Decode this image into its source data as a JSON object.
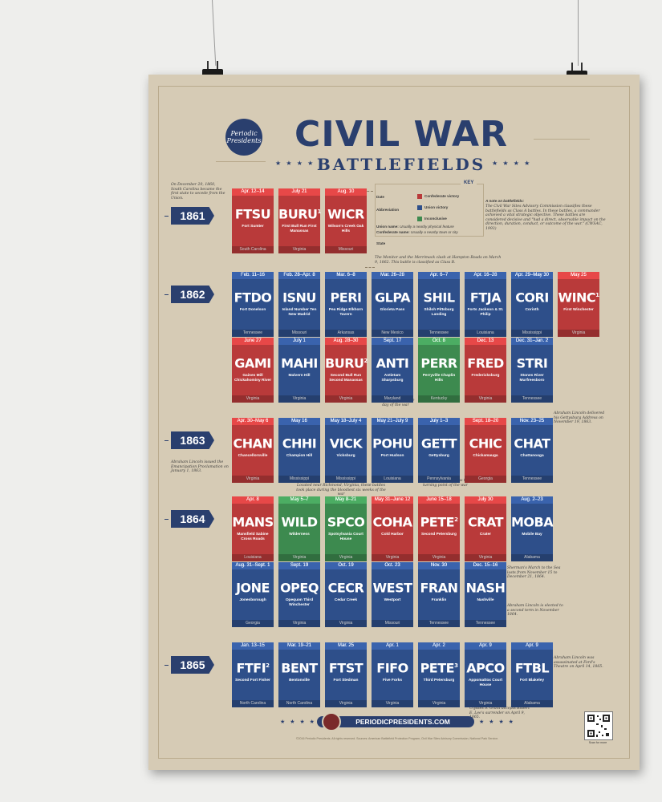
{
  "poster": {
    "logo_line1": "Periodic",
    "logo_line2": "Presidents",
    "title": "CIVIL WAR",
    "subtitle": "BATTLEFIELDS",
    "stars": "★ ★ ★ ★",
    "footer_url": "PERIODICPRESIDENTS.COM",
    "copyright": "©2016 Periodic Presidents. All rights reserved. Sources: American Battlefield Protection Program, Civil War Sites Advisory Commission, National Park Service.",
    "qr_label": "Scan for more"
  },
  "colors": {
    "confederate": "#b93a3a",
    "union": "#2e4f8a",
    "inconclusive": "#3d8a4f",
    "navy": "#2a3f6e",
    "paper": "#d6cbb5"
  },
  "key": {
    "title": "KEY",
    "date_label": "Date",
    "abbr_label": "Abbreviation",
    "union_name_label": "Union name:",
    "union_name_desc": "Usually a nearby physical feature",
    "confed_name_label": "Confederate name:",
    "confed_name_desc": "Usually a nearby town or city",
    "state_label": "State",
    "legend_confederate": "Confederate victory",
    "legend_union": "Union victory",
    "legend_inconclusive": "Inconclusive",
    "note_title": "A note on battlefields:",
    "note_text": "The Civil War Sites Advisory Commission classifies these battlefields as Class A battles. In these battles, a commander achieved a vital strategic objective. These battles are considered decisive and \"had a direct, observable impact on the direction, duration, conduct, or outcome of the war.\" (CWSAC, 1993)"
  },
  "notes": {
    "secession": "On December 20, 1860, South Carolina became the first state to secede from the Union.",
    "monitor": "The Monitor and the Merrimack clash at Hampton Roads on March 9, 1862. This battle is classified as Class B.",
    "bloodiest": "The bloodiest single day of the war",
    "gettysburg_address": "Abraham Lincoln delivered his Gettysburg Address on November 19, 1863.",
    "emancipation": "Abraham Lincoln issued the Emancipation Proclamation on January 1, 1863.",
    "turning_point": "Generally regarded as the turning point of the war",
    "overland": "Located near Richmond, Virginia, these battles took place during the bloodiest six weeks of the war",
    "sherman": "Sherman's March to the Sea lasts from November 15 to December 21, 1864.",
    "reelected": "Abraham Lincoln is elected to a second term in November 1864.",
    "assassinated": "Abraham Lincoln was assassinated at Ford's Theatre on April 14, 1865.",
    "surrender": "Ulysses S. Grant accepts Robert E. Lee's surrender on April 9, 1865."
  },
  "years": [
    {
      "year": "1861",
      "rows": [
        [
          {
            "date": "Apr. 12–14",
            "abbr": "FTSU",
            "sup": "",
            "name": "Fort Sumter",
            "state": "South Carolina",
            "result": "confederate"
          },
          {
            "date": "July 21",
            "abbr": "BURU",
            "sup": "1",
            "name": "First Bull Run First Manassas",
            "state": "Virginia",
            "result": "confederate"
          },
          {
            "date": "Aug. 10",
            "abbr": "WICR",
            "sup": "",
            "name": "Wilson's Creek Oak Hills",
            "state": "Missouri",
            "result": "confederate"
          }
        ]
      ]
    },
    {
      "year": "1862",
      "rows": [
        [
          {
            "date": "Feb. 11–16",
            "abbr": "FTDO",
            "sup": "",
            "name": "Fort Donelson",
            "state": "Tennessee",
            "result": "union"
          },
          {
            "date": "Feb. 28–Apr. 8",
            "abbr": "ISNU",
            "sup": "",
            "name": "Island Number Ten New Madrid",
            "state": "Missouri",
            "result": "union"
          },
          {
            "date": "Mar. 6–8",
            "abbr": "PERI",
            "sup": "",
            "name": "Pea Ridge Elkhorn Tavern",
            "state": "Arkansas",
            "result": "union"
          },
          {
            "date": "Mar. 26–28",
            "abbr": "GLPA",
            "sup": "",
            "name": "Glorieta Pass",
            "state": "New Mexico",
            "result": "union"
          },
          {
            "date": "Apr. 6–7",
            "abbr": "SHIL",
            "sup": "",
            "name": "Shiloh Pittsburg Landing",
            "state": "Tennessee",
            "result": "union"
          },
          {
            "date": "Apr. 16–28",
            "abbr": "FTJA",
            "sup": "",
            "name": "Forts Jackson & St. Philip",
            "state": "Louisiana",
            "result": "union"
          },
          {
            "date": "Apr. 29–May 30",
            "abbr": "CORI",
            "sup": "",
            "name": "Corinth",
            "state": "Mississippi",
            "result": "union"
          },
          {
            "date": "May 25",
            "abbr": "WINC",
            "sup": "1",
            "name": "First Winchester",
            "state": "Virginia",
            "result": "confederate"
          }
        ],
        [
          {
            "date": "June 27",
            "abbr": "GAMI",
            "sup": "",
            "name": "Gaines Mill Chickahominy River",
            "state": "Virginia",
            "result": "confederate"
          },
          {
            "date": "July 1",
            "abbr": "MAHI",
            "sup": "",
            "name": "Malvern Hill",
            "state": "Virginia",
            "result": "union"
          },
          {
            "date": "Aug. 28–30",
            "abbr": "BURU",
            "sup": "2",
            "name": "Second Bull Run Second Manassas",
            "state": "Virginia",
            "result": "confederate"
          },
          {
            "date": "Sept. 17",
            "abbr": "ANTI",
            "sup": "",
            "name": "Antietam Sharpsburg",
            "state": "Maryland",
            "result": "union"
          },
          {
            "date": "Oct. 8",
            "abbr": "PERR",
            "sup": "",
            "name": "Perryville Chaplin Hills",
            "state": "Kentucky",
            "result": "inconclusive"
          },
          {
            "date": "Dec. 13",
            "abbr": "FRED",
            "sup": "",
            "name": "Fredericksburg",
            "state": "Virginia",
            "result": "confederate"
          },
          {
            "date": "Dec. 31–Jan. 2",
            "abbr": "STRI",
            "sup": "",
            "name": "Stones River Murfreesboro",
            "state": "Tennessee",
            "result": "union"
          }
        ]
      ]
    },
    {
      "year": "1863",
      "rows": [
        [
          {
            "date": "Apr. 30–May 6",
            "abbr": "CHAN",
            "sup": "",
            "name": "Chancellorsville",
            "state": "Virginia",
            "result": "confederate"
          },
          {
            "date": "May 16",
            "abbr": "CHHI",
            "sup": "",
            "name": "Champion Hill",
            "state": "Mississippi",
            "result": "union"
          },
          {
            "date": "May 18–July 4",
            "abbr": "VICK",
            "sup": "",
            "name": "Vicksburg",
            "state": "Mississippi",
            "result": "union"
          },
          {
            "date": "May 21–July 9",
            "abbr": "POHU",
            "sup": "",
            "name": "Port Hudson",
            "state": "Louisiana",
            "result": "union"
          },
          {
            "date": "July 1–3",
            "abbr": "GETT",
            "sup": "",
            "name": "Gettysburg",
            "state": "Pennsylvania",
            "result": "union"
          },
          {
            "date": "Sept. 18–20",
            "abbr": "CHIC",
            "sup": "",
            "name": "Chickamauga",
            "state": "Georgia",
            "result": "confederate"
          },
          {
            "date": "Nov. 23–25",
            "abbr": "CHAT",
            "sup": "",
            "name": "Chattanooga",
            "state": "Tennessee",
            "result": "union"
          }
        ]
      ]
    },
    {
      "year": "1864",
      "rows": [
        [
          {
            "date": "Apr. 8",
            "abbr": "MANS",
            "sup": "",
            "name": "Mansfield Sabine Cross Roads",
            "state": "Louisiana",
            "result": "confederate"
          },
          {
            "date": "May 5–7",
            "abbr": "WILD",
            "sup": "",
            "name": "Wilderness",
            "state": "Virginia",
            "result": "inconclusive"
          },
          {
            "date": "May 8–21",
            "abbr": "SPCO",
            "sup": "",
            "name": "Spotsylvania Court House",
            "state": "Virginia",
            "result": "inconclusive"
          },
          {
            "date": "May 31–June 12",
            "abbr": "COHA",
            "sup": "",
            "name": "Cold Harbor",
            "state": "Virginia",
            "result": "confederate"
          },
          {
            "date": "June 15–18",
            "abbr": "PETE",
            "sup": "2",
            "name": "Second Petersburg",
            "state": "Virginia",
            "result": "confederate"
          },
          {
            "date": "July 30",
            "abbr": "CRAT",
            "sup": "",
            "name": "Crater",
            "state": "Virginia",
            "result": "confederate"
          },
          {
            "date": "Aug. 2–23",
            "abbr": "MOBA",
            "sup": "",
            "name": "Mobile Bay",
            "state": "Alabama",
            "result": "union"
          }
        ],
        [
          {
            "date": "Aug. 31–Sept. 1",
            "abbr": "JONE",
            "sup": "",
            "name": "Jonesborough",
            "state": "Georgia",
            "result": "union"
          },
          {
            "date": "Sept. 19",
            "abbr": "OPEQ",
            "sup": "",
            "name": "Opequon Third Winchester",
            "state": "Virginia",
            "result": "union"
          },
          {
            "date": "Oct. 19",
            "abbr": "CECR",
            "sup": "",
            "name": "Cedar Creek",
            "state": "Virginia",
            "result": "union"
          },
          {
            "date": "Oct. 23",
            "abbr": "WEST",
            "sup": "",
            "name": "Westport",
            "state": "Missouri",
            "result": "union"
          },
          {
            "date": "Nov. 30",
            "abbr": "FRAN",
            "sup": "",
            "name": "Franklin",
            "state": "Tennessee",
            "result": "union"
          },
          {
            "date": "Dec. 15–16",
            "abbr": "NASH",
            "sup": "",
            "name": "Nashville",
            "state": "Tennessee",
            "result": "union"
          }
        ]
      ]
    },
    {
      "year": "1865",
      "rows": [
        [
          {
            "date": "Jan. 13–15",
            "abbr": "FTFI",
            "sup": "2",
            "name": "Second Fort Fisher",
            "state": "North Carolina",
            "result": "union"
          },
          {
            "date": "Mar. 19–21",
            "abbr": "BENT",
            "sup": "",
            "name": "Bentonville",
            "state": "North Carolina",
            "result": "union"
          },
          {
            "date": "Mar. 25",
            "abbr": "FTST",
            "sup": "",
            "name": "Fort Stedman",
            "state": "Virginia",
            "result": "union"
          },
          {
            "date": "Apr. 1",
            "abbr": "FIFO",
            "sup": "",
            "name": "Five Forks",
            "state": "Virginia",
            "result": "union"
          },
          {
            "date": "Apr. 2",
            "abbr": "PETE",
            "sup": "3",
            "name": "Third Petersburg",
            "state": "Virginia",
            "result": "union"
          },
          {
            "date": "Apr. 9",
            "abbr": "APCO",
            "sup": "",
            "name": "Appomattox Court House",
            "state": "Virginia",
            "result": "union"
          },
          {
            "date": "Apr. 9",
            "abbr": "FTBL",
            "sup": "",
            "name": "Fort Blakeley",
            "state": "Alabama",
            "result": "union"
          }
        ]
      ]
    }
  ]
}
